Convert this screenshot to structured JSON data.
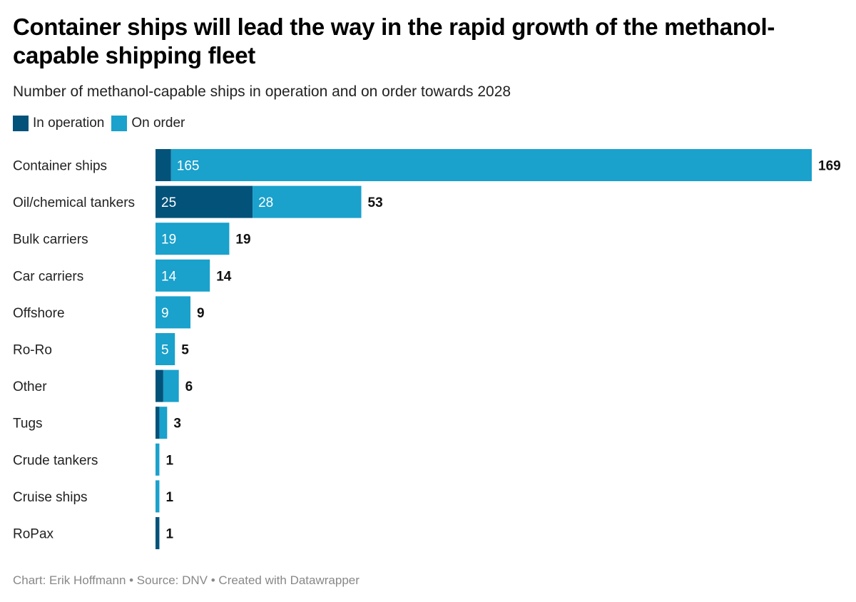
{
  "title": "Container ships will lead the way in the rapid growth of the methanol-capable shipping fleet",
  "subtitle": "Number of methanol-capable ships in operation and on order towards 2028",
  "footer": "Chart: Erik Hoffmann • Source: DNV • Created with Datawrapper",
  "colors": {
    "in_operation": "#02527a",
    "on_order": "#1aa1cc"
  },
  "chart_data": {
    "type": "bar",
    "orientation": "horizontal",
    "stacked": true,
    "title": "Container ships will lead the way in the rapid growth of the methanol-capable shipping fleet",
    "subtitle": "Number of methanol-capable ships in operation and on order towards 2028",
    "xlabel": "",
    "ylabel": "",
    "legend_position": "top-left",
    "grid": false,
    "categories": [
      "Container ships",
      "Oil/chemical tankers",
      "Bulk carriers",
      "Car carriers",
      "Offshore",
      "Ro-Ro",
      "Other",
      "Tugs",
      "Crude tankers",
      "Cruise ships",
      "RoPax"
    ],
    "series": [
      {
        "name": "In operation",
        "values": [
          4,
          25,
          0,
          0,
          0,
          0,
          2,
          1,
          0,
          0,
          1
        ]
      },
      {
        "name": "On order",
        "values": [
          165,
          28,
          19,
          14,
          9,
          5,
          4,
          2,
          1,
          1,
          0
        ]
      }
    ],
    "totals": [
      169,
      53,
      19,
      14,
      9,
      5,
      6,
      3,
      1,
      1,
      1
    ],
    "segment_labels_shown": [
      [
        null,
        "165"
      ],
      [
        "25",
        "28"
      ],
      [
        null,
        "19"
      ],
      [
        null,
        "14"
      ],
      [
        null,
        "9"
      ],
      [
        null,
        "5"
      ],
      [
        null,
        null
      ],
      [
        null,
        null
      ],
      [
        null,
        null
      ],
      [
        null,
        null
      ],
      [
        null,
        null
      ]
    ],
    "xlim": [
      0,
      169
    ]
  }
}
